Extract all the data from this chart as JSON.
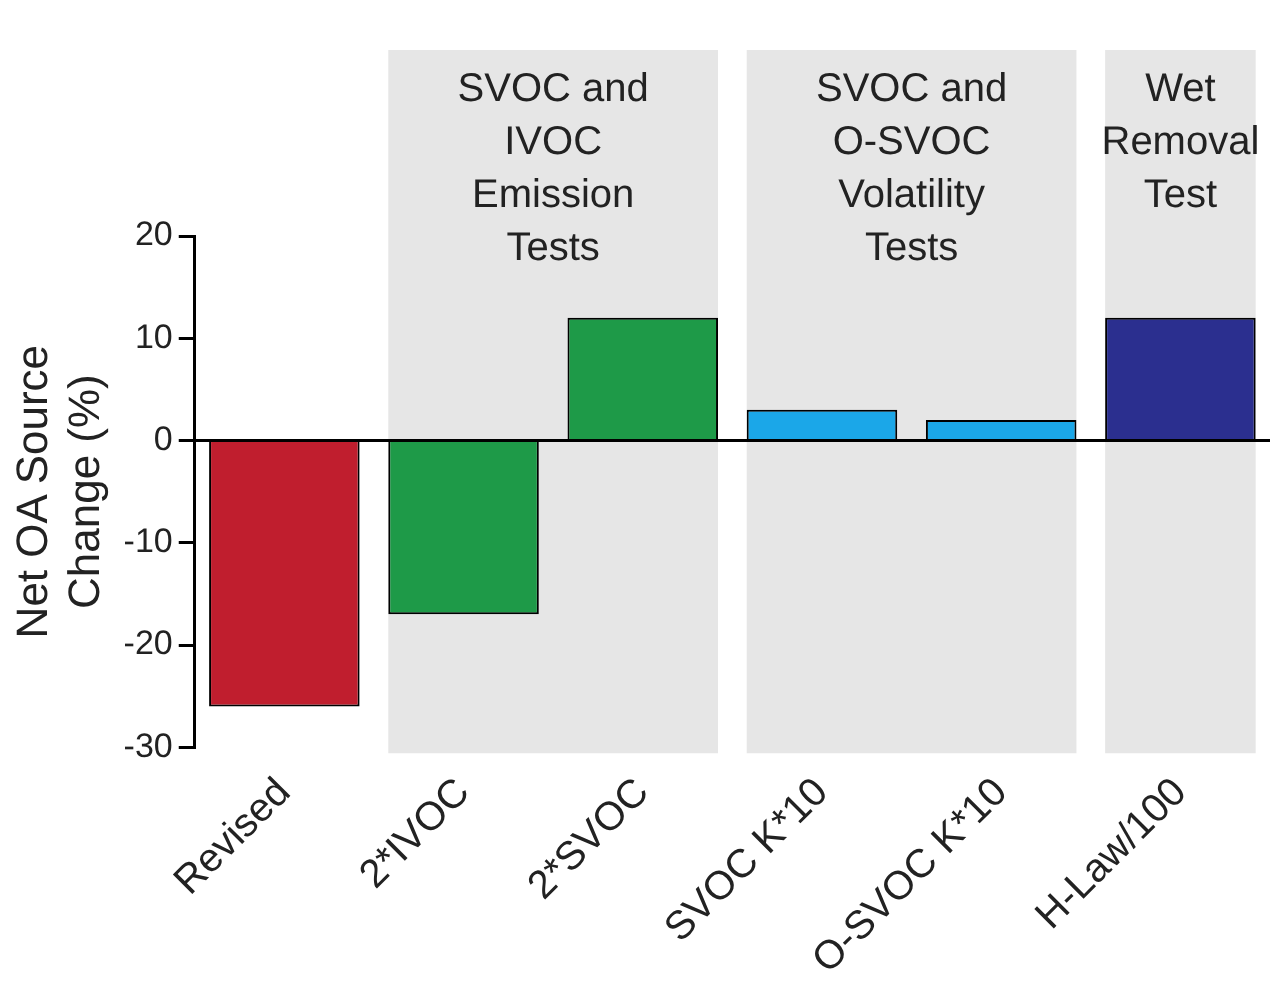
{
  "chart_data": {
    "type": "bar",
    "ylabel": "Net OA Source\nChange (%)",
    "categories": [
      "Revised",
      "2*IVOC",
      "2*SVOC",
      "SVOC K*10",
      "O-SVOC K*10",
      "H-Law/100"
    ],
    "values": [
      -26,
      -17,
      12,
      3,
      2,
      12
    ],
    "colors": [
      "#c01e2e",
      "#1e9a48",
      "#1e9a48",
      "#1ba7e8",
      "#1ba7e8",
      "#2b2f8f"
    ],
    "ylim": [
      -30,
      20
    ],
    "yticks": [
      -30,
      -20,
      -10,
      0,
      10,
      20
    ],
    "grid": false,
    "legend": false,
    "ref_lines": [
      {
        "axis": "y",
        "value": 0,
        "label": null,
        "color": "#000000"
      }
    ],
    "bands": [
      {
        "axis": "x",
        "from": "2*IVOC",
        "to": "2*SVOC",
        "label": "SVOC and\nIVOC\nEmission\nTests",
        "color": "#e6e6e6"
      },
      {
        "axis": "x",
        "from": "SVOC K*10",
        "to": "O-SVOC K*10",
        "label": "SVOC and\nO-SVOC\nVolatility\nTests",
        "color": "#e6e6e6"
      },
      {
        "axis": "x",
        "from": "H-Law/100",
        "to": "H-Law/100",
        "label": "Wet\nRemoval\nTest",
        "color": "#e6e6e6"
      }
    ]
  }
}
